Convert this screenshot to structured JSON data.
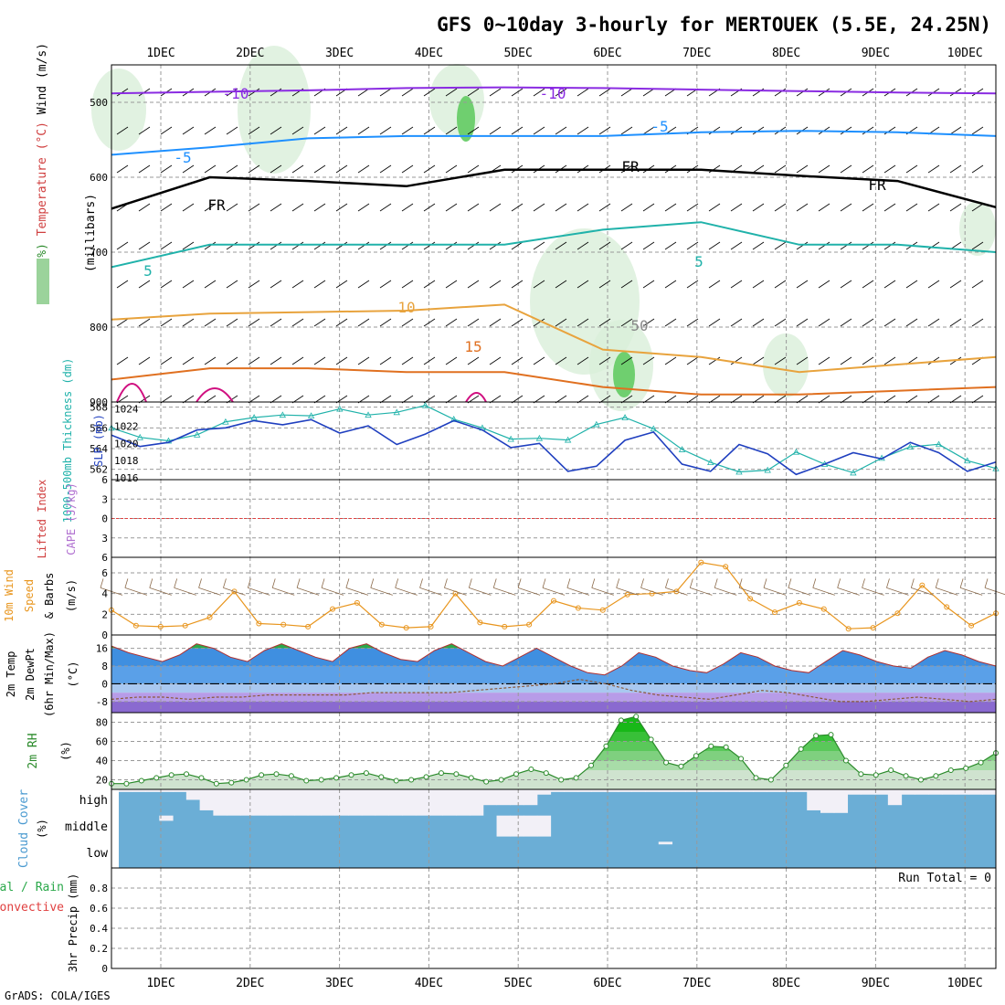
{
  "title": "GFS 0~10day 3-hourly for MERTOUEK (5.5E, 24.25N)",
  "footer": "GrADS: COLA/IGES",
  "dates": [
    "1DEC",
    "2DEC",
    "3DEC",
    "4DEC",
    "5DEC",
    "6DEC",
    "7DEC",
    "8DEC",
    "9DEC",
    "10DEC"
  ],
  "colors": {
    "sounding_wind": "#000000",
    "rh_band": "#9bd39b",
    "temp_cold": "#8a2be2",
    "thickness": "#20b2aa",
    "slp": "#1f3fbf",
    "wind10": "#e8951d",
    "temp_fill": "#1aa83a",
    "dewpt_fill": "#2266cc",
    "rh2m": "#2a8a2a",
    "cloud": "#6baed6",
    "cloud_clear": "#f2f0f7",
    "grid": "#999999"
  },
  "chart_data": [
    {
      "panel": "sounding",
      "type": "contour",
      "ylabel_parts": [
        "RH (%)",
        "Temperature (°C)",
        "Wind (m/s)"
      ],
      "ylabel2": "(millibars)",
      "yticks": [
        500,
        600,
        700,
        800,
        900
      ],
      "ylim": [
        450,
        900
      ],
      "contours": [
        {
          "name": "-10",
          "values": [
            488,
            486,
            484,
            481,
            480,
            481,
            483,
            485,
            487,
            488
          ]
        },
        {
          "name": "-5",
          "values": [
            570,
            560,
            548,
            545,
            545,
            545,
            540,
            538,
            540,
            545
          ]
        },
        {
          "name": "FR",
          "values": [
            642,
            600,
            605,
            612,
            590,
            590,
            590,
            598,
            605,
            640
          ]
        },
        {
          "name": "5",
          "values": [
            720,
            690,
            690,
            690,
            690,
            670,
            660,
            690,
            690,
            700
          ]
        },
        {
          "name": "10",
          "values": [
            790,
            782,
            780,
            778,
            770,
            830,
            840,
            860,
            850,
            840
          ]
        },
        {
          "name": "15",
          "values": [
            870,
            855,
            855,
            860,
            860,
            880,
            890,
            890,
            885,
            880
          ]
        }
      ],
      "contour_labels": [
        "-10",
        "-10",
        "-5",
        "-5",
        "FR",
        "FR",
        "FR",
        "5",
        "5",
        "10",
        "15",
        "50"
      ]
    },
    {
      "panel": "thickness_slp",
      "type": "line",
      "ylabel_left": "1000-500mb Thickness (dm)",
      "ylabel_right": "SLP (mb)",
      "yticks_left": [
        562,
        564,
        566,
        568
      ],
      "yticks_right": [
        1016,
        1018,
        1020,
        1022,
        1024
      ],
      "ylim_left": [
        561,
        568.5
      ],
      "ylim_right": [
        1015.8,
        1024.8
      ],
      "series": [
        {
          "name": "thickness",
          "values": [
            565.3,
            564.2,
            564.6,
            565.8,
            566.0,
            566.7,
            566.3,
            566.8,
            565.5,
            566.2,
            564.4,
            565.4,
            566.7,
            565.8,
            564.1,
            564.5,
            561.8,
            562.3,
            564.8,
            565.6,
            562.5,
            561.8,
            564.4,
            563.5,
            561.5,
            562.5,
            563.6,
            563.0,
            564.6,
            563.6,
            561.8,
            562.7
          ]
        },
        {
          "name": "SLP",
          "values": [
            1021.8,
            1020.7,
            1020.3,
            1021.0,
            1022.5,
            1023.0,
            1023.3,
            1023.2,
            1024.0,
            1023.3,
            1023.6,
            1024.4,
            1022.8,
            1021.8,
            1020.5,
            1020.6,
            1020.4,
            1022.2,
            1023.0,
            1021.7,
            1019.3,
            1017.8,
            1016.7,
            1016.9,
            1019.0,
            1017.6,
            1016.6,
            1018.3,
            1019.6,
            1019.9,
            1018.0,
            1017.1
          ]
        }
      ]
    },
    {
      "panel": "cape_li",
      "type": "line",
      "ylabel_left": "Lifted Index",
      "ylabel_right": "CAPE (J/kg)",
      "yticks": [
        -6,
        -3,
        0,
        3,
        6
      ],
      "ylim": [
        -6,
        6
      ],
      "series": [
        {
          "name": "LI zero",
          "values": [
            0,
            0
          ]
        }
      ]
    },
    {
      "panel": "wind10m",
      "type": "line",
      "ylabel": "10m Wind Speed & Barbs",
      "yunit": "(m/s)",
      "yticks": [
        0,
        2,
        4,
        6
      ],
      "ylim": [
        0,
        7.5
      ],
      "series": [
        {
          "name": "wind speed",
          "values": [
            2.4,
            0.9,
            0.8,
            0.9,
            1.7,
            4.2,
            1.1,
            1.0,
            0.8,
            2.5,
            3.1,
            1.0,
            0.7,
            0.8,
            4.0,
            1.2,
            0.8,
            1.0,
            3.3,
            2.6,
            2.4,
            3.9,
            4.0,
            4.2,
            7.0,
            6.6,
            3.5,
            2.2,
            3.1,
            2.5,
            0.6,
            0.7,
            2.1,
            4.8,
            2.7,
            0.9,
            2.1
          ]
        }
      ]
    },
    {
      "panel": "temp2m",
      "type": "area",
      "ylabel": "2m Temp 2m DewPt (6hr Min/Max)",
      "yunit": "(°C)",
      "yticks": [
        -8,
        0,
        8,
        16
      ],
      "ylim": [
        -13,
        22
      ],
      "series": [
        {
          "name": "temp",
          "values": [
            17,
            14,
            12,
            10,
            13,
            18,
            16,
            12,
            10,
            15,
            18,
            15,
            12,
            10,
            16,
            18,
            14,
            11,
            10,
            15,
            18,
            14,
            10,
            8,
            12,
            16,
            12,
            8,
            5,
            4,
            8,
            14,
            12,
            8,
            6,
            5,
            9,
            14,
            12,
            8,
            6,
            5,
            10,
            15,
            13,
            10,
            8,
            7,
            12,
            15,
            13,
            10,
            8
          ]
        },
        {
          "name": "dewpt",
          "values": [
            -7,
            -6,
            -6,
            -7,
            -6,
            -6,
            -5,
            -5,
            -5,
            -5,
            -4,
            -4,
            -4,
            -4,
            -3,
            -2,
            -1,
            0,
            2,
            0,
            -3,
            -5,
            -6,
            -7,
            -5,
            -3,
            -4,
            -6,
            -8,
            -8,
            -7,
            -6,
            -7,
            -8,
            -7
          ]
        }
      ]
    },
    {
      "panel": "rh2m",
      "type": "area",
      "ylabel": "2m RH",
      "yunit": "(%)",
      "yticks": [
        20,
        40,
        60,
        80
      ],
      "ylim": [
        10,
        90
      ],
      "series": [
        {
          "name": "rh",
          "values": [
            16,
            16,
            19,
            22,
            25,
            26,
            22,
            16,
            17,
            20,
            25,
            26,
            24,
            19,
            20,
            22,
            25,
            27,
            23,
            19,
            20,
            23,
            27,
            26,
            22,
            18,
            20,
            26,
            31,
            27,
            20,
            22,
            35,
            55,
            82,
            86,
            62,
            38,
            34,
            45,
            55,
            54,
            42,
            22,
            20,
            35,
            52,
            66,
            67,
            40,
            26,
            25,
            30,
            24,
            20,
            24,
            30,
            32,
            38,
            48
          ]
        }
      ]
    },
    {
      "panel": "cloud",
      "type": "heatmap",
      "ylabel": "Cloud Cover",
      "yunit": "(%)",
      "levels": [
        "high",
        "middle",
        "low"
      ],
      "series": [
        {
          "name": "high",
          "values": [
            10,
            10,
            10,
            10,
            10,
            40,
            80,
            100,
            100,
            100,
            100,
            100,
            100,
            100,
            100,
            100,
            100,
            100,
            100,
            100,
            100,
            100,
            100,
            100,
            100,
            100,
            100,
            60,
            60,
            60,
            60,
            20,
            10,
            10,
            10,
            10,
            10,
            10,
            10,
            10,
            10,
            10,
            10,
            10,
            10,
            10,
            10,
            10,
            10,
            10,
            10,
            80,
            90,
            90,
            20,
            20,
            20,
            60,
            20,
            20,
            20,
            20,
            20,
            20,
            20
          ]
        },
        {
          "name": "middle",
          "values": [
            0,
            0,
            0,
            20,
            0,
            0,
            0,
            0,
            0,
            0,
            0,
            0,
            0,
            0,
            0,
            0,
            0,
            0,
            0,
            0,
            0,
            0,
            0,
            0,
            0,
            0,
            0,
            0,
            80,
            80,
            80,
            80,
            0,
            0,
            0,
            0,
            0,
            0,
            0,
            0,
            0,
            0,
            0,
            0,
            0,
            0,
            0,
            0,
            0,
            0,
            0,
            0,
            0,
            0,
            0,
            0,
            0,
            0,
            0,
            0,
            0,
            0,
            0,
            0,
            0
          ]
        },
        {
          "name": "low",
          "values": [
            0,
            0,
            0,
            0,
            0,
            0,
            0,
            0,
            0,
            0,
            0,
            0,
            0,
            0,
            0,
            0,
            0,
            0,
            0,
            0,
            0,
            0,
            0,
            0,
            0,
            0,
            0,
            0,
            0,
            0,
            0,
            0,
            0,
            0,
            0,
            0,
            0,
            0,
            0,
            0,
            10,
            0,
            0,
            0,
            0,
            0,
            0,
            0,
            0,
            0,
            0,
            0,
            0,
            0,
            0,
            0,
            0,
            0,
            0,
            0,
            0,
            0,
            0,
            0,
            0
          ]
        }
      ]
    },
    {
      "panel": "precip",
      "type": "bar",
      "ylabel": "3hr Precip (mm)",
      "legend": [
        "Total / Rain",
        "Convective"
      ],
      "annotation": "Run Total = 0",
      "yticks": [
        0,
        0.2,
        0.4,
        0.6,
        0.8
      ],
      "ylim": [
        0,
        1
      ],
      "values": [
        0,
        0,
        0,
        0,
        0,
        0,
        0,
        0,
        0,
        0
      ]
    }
  ]
}
